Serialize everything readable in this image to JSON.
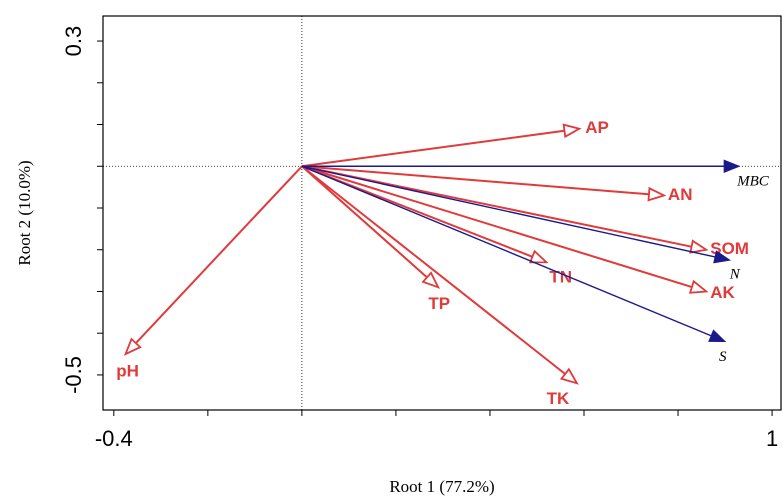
{
  "chart_data": {
    "type": "biplot",
    "xlabel": "Root 1 (77.2%)",
    "ylabel": "Root 2 (10.0%)",
    "xlim": [
      -0.423,
      1.019
    ],
    "ylim": [
      -0.584,
      0.36
    ],
    "xticks": [
      -0.4,
      1.0
    ],
    "yticks": [
      -0.5,
      0.3
    ],
    "xminor_ticks": [
      -0.2,
      0,
      0.2,
      0.4,
      0.6,
      0.8
    ],
    "yminor_ticks": [
      -0.4,
      -0.3,
      -0.2,
      -0.1,
      0,
      0.1,
      0.2
    ],
    "zero_lines": true,
    "groups": [
      {
        "color": "#e03a3a",
        "arrowhead": "open",
        "labels": [
          "AP",
          "AN",
          "SOM",
          "AK",
          "TN",
          "TP",
          "TK",
          "pH"
        ],
        "x": [
          0.59,
          0.77,
          0.86,
          0.86,
          0.52,
          0.29,
          0.585,
          -0.375
        ],
        "y": [
          0.09,
          -0.07,
          -0.2,
          -0.3,
          -0.23,
          -0.29,
          -0.52,
          -0.45
        ]
      },
      {
        "color": "#1a1a8c",
        "arrowhead": "filled",
        "labels": [
          "MBC",
          "N",
          "S"
        ],
        "x": [
          0.93,
          0.91,
          0.9
        ],
        "y": [
          0.0,
          -0.225,
          -0.42
        ]
      }
    ]
  }
}
